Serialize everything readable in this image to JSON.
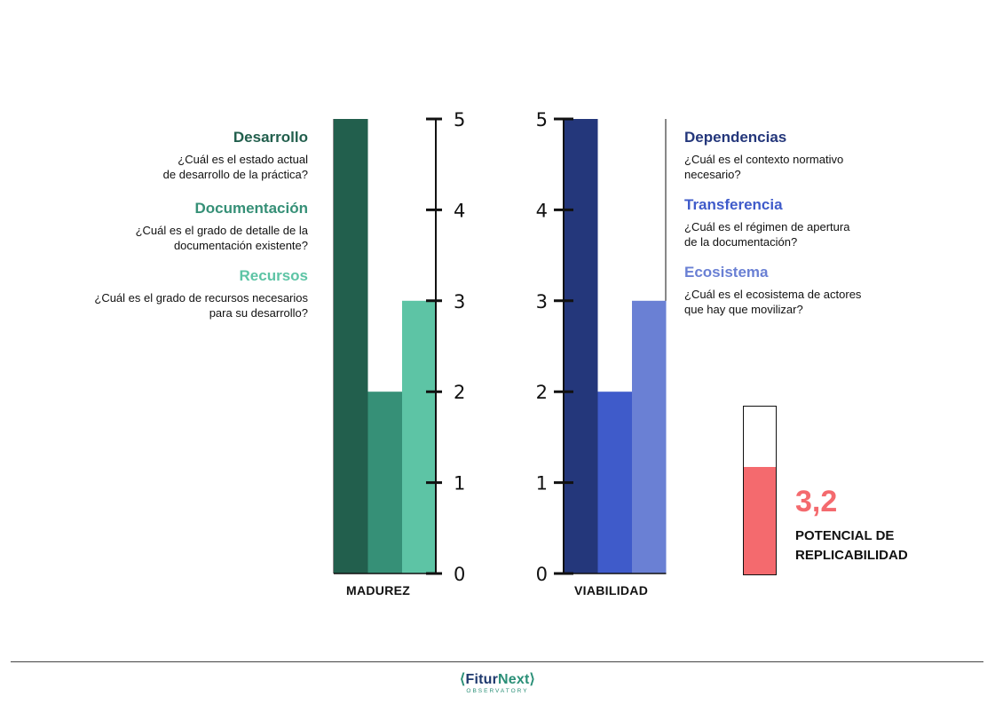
{
  "chart_data": [
    {
      "type": "bar",
      "categories": [
        "Desarrollo",
        "Documentación",
        "Recursos"
      ],
      "values": [
        5,
        2,
        3
      ],
      "xlabel": "MADUREZ",
      "ylim": [
        0,
        5
      ],
      "ticks": [
        "0",
        "1",
        "2",
        "3",
        "4",
        "5"
      ],
      "colors": [
        "#225f4d",
        "#369077",
        "#5dc4a5"
      ],
      "questions": [
        [
          "¿Cuál es el estado actual",
          "de desarrollo de la práctica?"
        ],
        [
          "¿Cuál es el grado de detalle de la",
          "documentación existente?"
        ],
        [
          "¿Cuál es el grado de recursos necesarios",
          "para su desarrollo?"
        ]
      ]
    },
    {
      "type": "bar",
      "categories": [
        "Dependencias",
        "Transferencia",
        "Ecosistema"
      ],
      "values": [
        5,
        2,
        3
      ],
      "xlabel": "VIABILIDAD",
      "ylim": [
        0,
        5
      ],
      "ticks": [
        "0",
        "1",
        "2",
        "3",
        "4",
        "5"
      ],
      "colors": [
        "#24377b",
        "#3f5bca",
        "#6a80d4"
      ],
      "questions": [
        [
          "¿Cuál es el contexto normativo",
          "necesario?"
        ],
        [
          "¿Cuál es el régimen de apertura",
          "de la documentación?"
        ],
        [
          "¿Cuál es el ecosistema de actores",
          "que hay que movilizar?"
        ]
      ]
    }
  ],
  "score": {
    "value": 3.2,
    "display": "3,2",
    "max": 5,
    "label_line1": "POTENCIAL DE",
    "label_line2": "REPLICABILIDAD",
    "color": "#f46a6e"
  },
  "footer": {
    "logo_left_bracket": "⟨",
    "logo_word1": "Fitur",
    "logo_word2": "Next",
    "logo_right_bracket": "⟩",
    "logo_sub": "OBSERVATORY"
  }
}
